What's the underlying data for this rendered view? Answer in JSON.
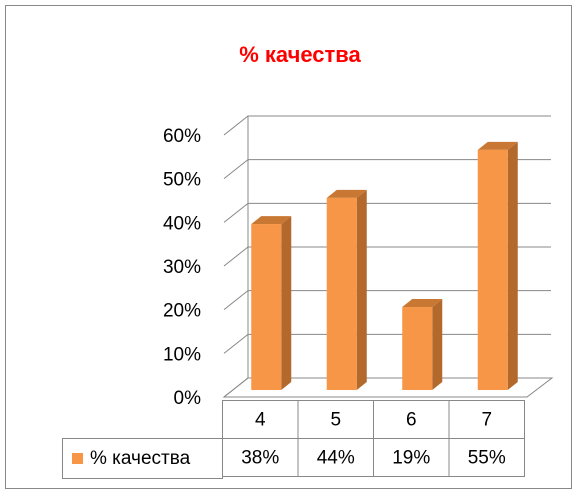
{
  "chart_data": {
    "type": "bar3d",
    "title": "% качества",
    "categories": [
      "4",
      "5",
      "6",
      "7"
    ],
    "series": [
      {
        "name": "% качества",
        "color": "#f79646",
        "values": [
          38,
          44,
          19,
          55
        ],
        "value_labels": [
          "38%",
          "44%",
          "19%",
          "55%"
        ]
      }
    ],
    "ylim": [
      0,
      60
    ],
    "yticks": [
      {
        "value": 0,
        "label": "0%"
      },
      {
        "value": 10,
        "label": "10%"
      },
      {
        "value": 20,
        "label": "20%"
      },
      {
        "value": 30,
        "label": "30%"
      },
      {
        "value": 40,
        "label": "40%"
      },
      {
        "value": 50,
        "label": "50%"
      },
      {
        "value": 60,
        "label": "60%"
      }
    ],
    "grid": true
  }
}
